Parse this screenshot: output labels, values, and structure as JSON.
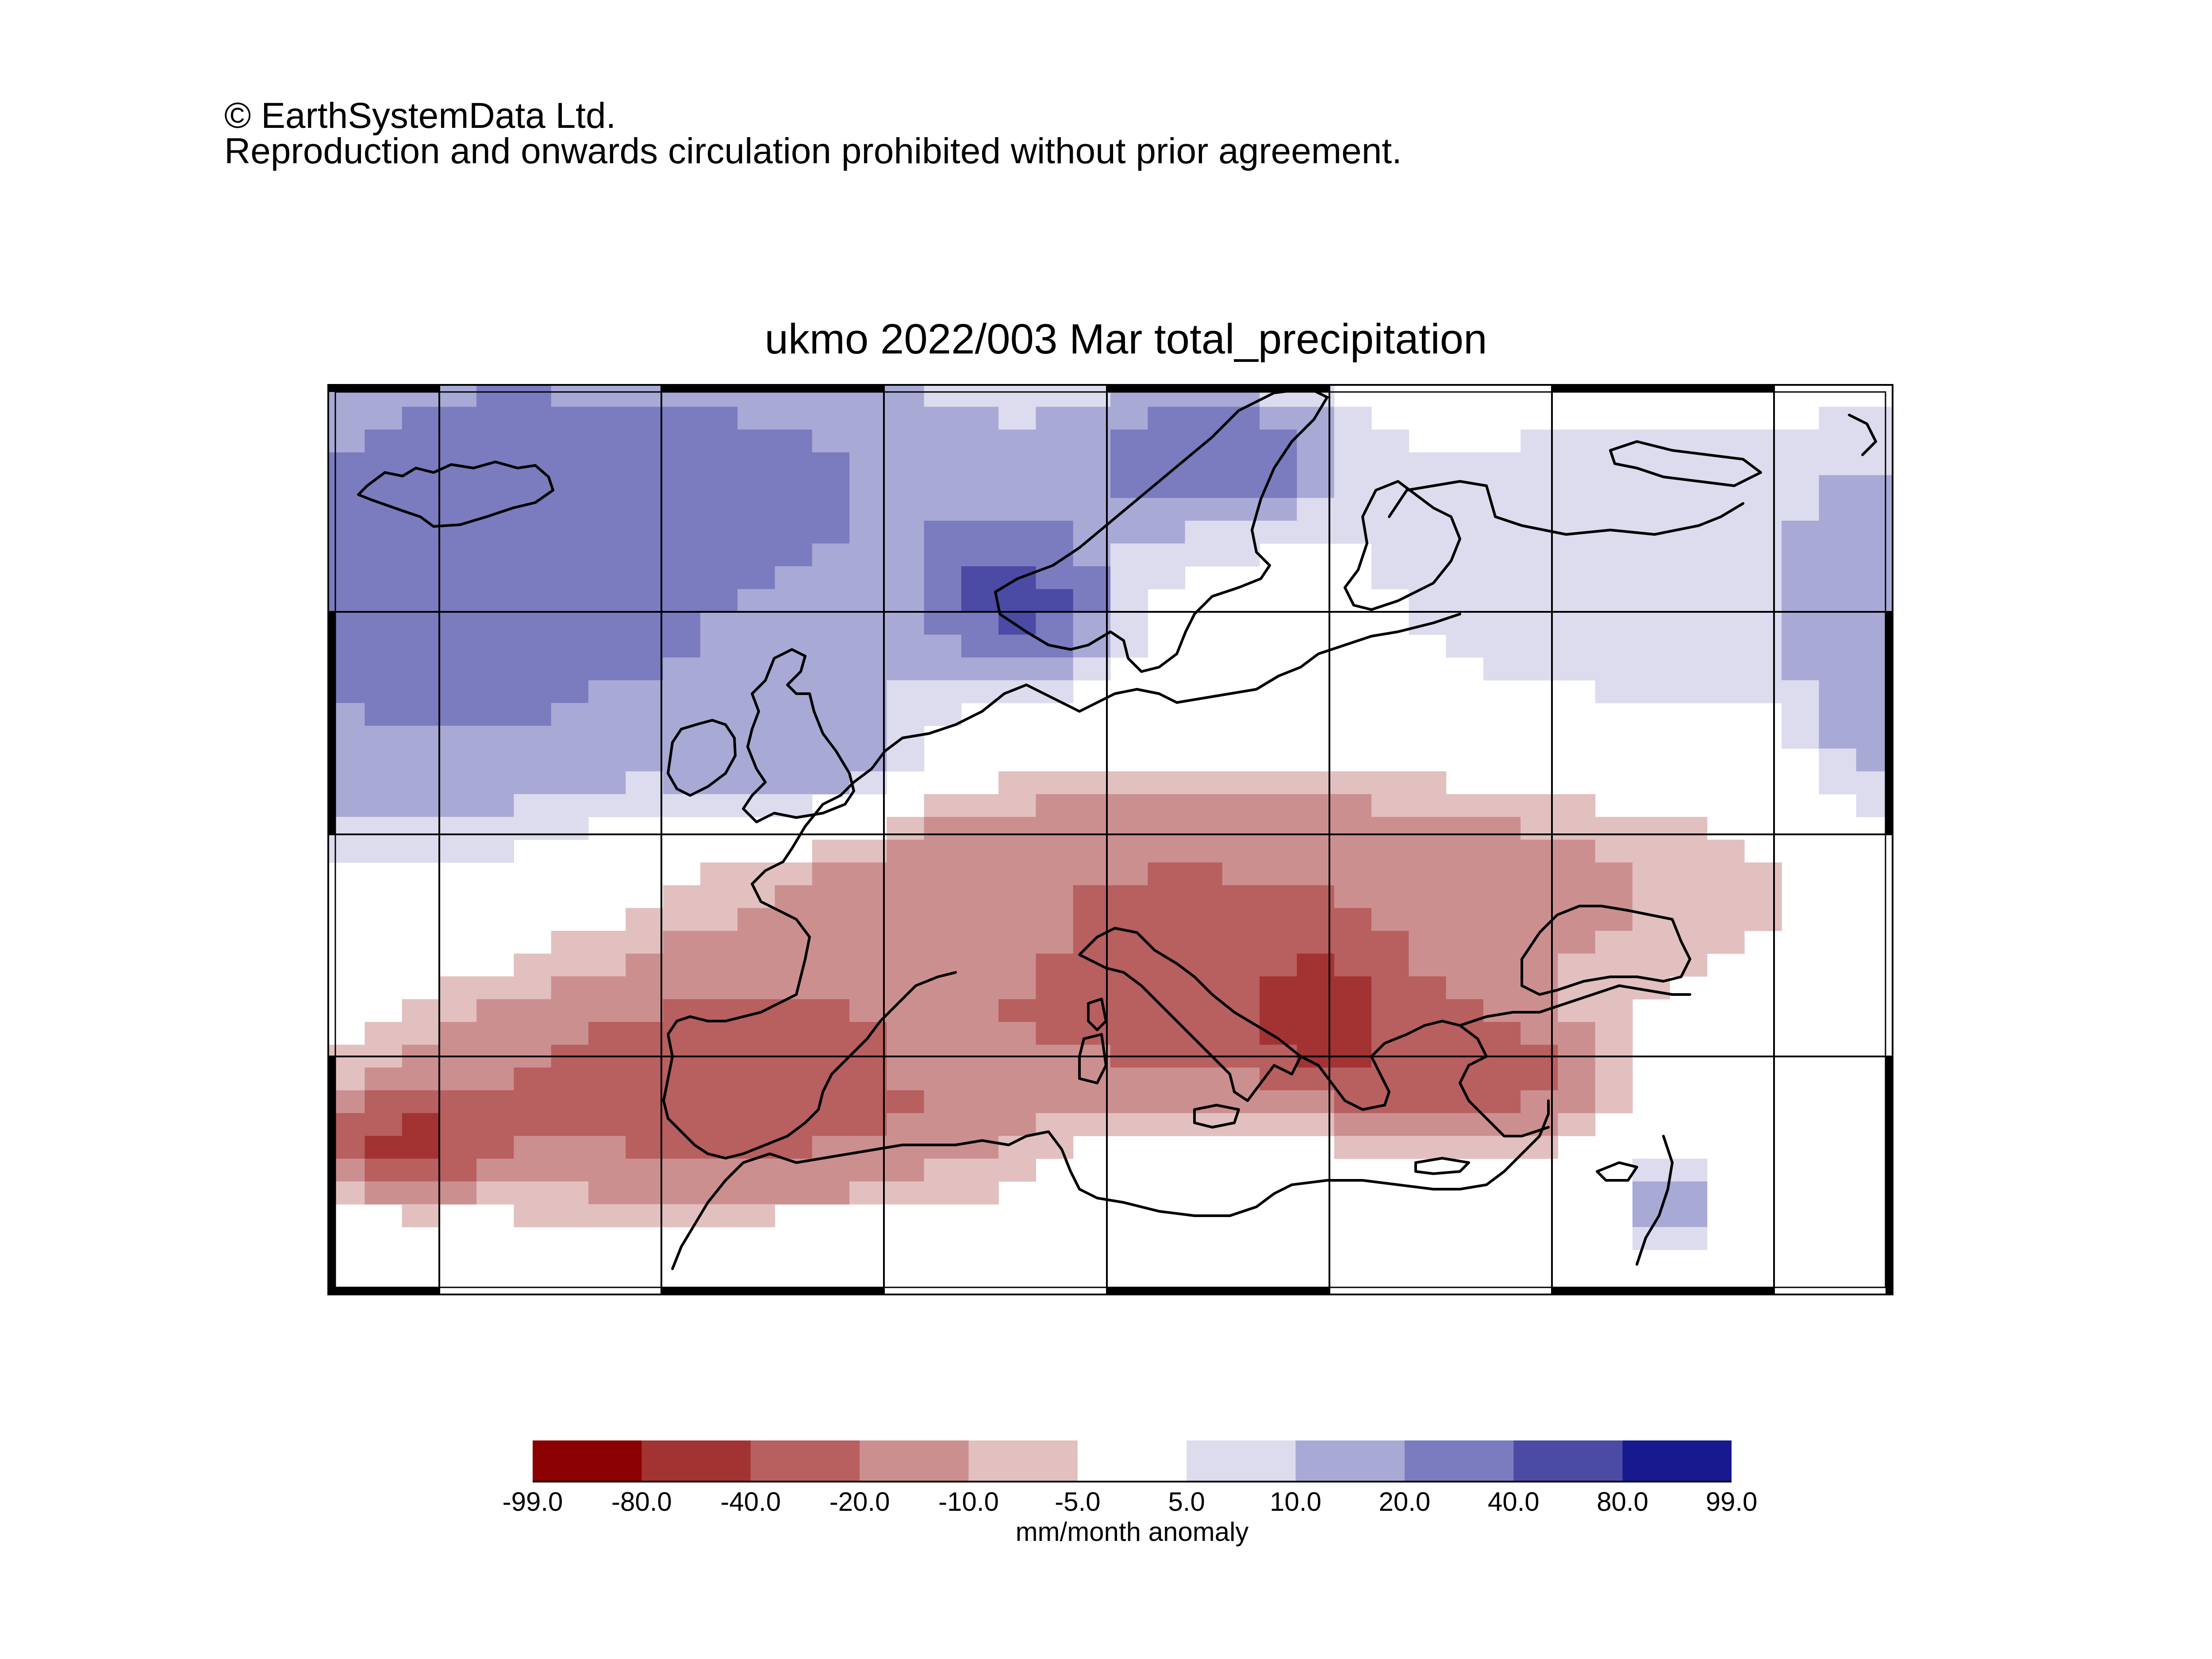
{
  "copyright": {
    "line1": "© EarthSystemData Ltd.",
    "line2": "Reproduction and onwards circulation prohibited without prior agreement."
  },
  "chart_data": {
    "type": "heatmap",
    "title": "ukmo 2022/003 Mar total_precipitation",
    "colorbar": {
      "boundaries": [
        "-99.0",
        "-80.0",
        "-40.0",
        "-20.0",
        "-10.0",
        "-5.0",
        "5.0",
        "10.0",
        "20.0",
        "40.0",
        "80.0",
        "99.0"
      ],
      "colors": [
        "#8b0000",
        "#a33333",
        "#b85f5f",
        "#cc8f8f",
        "#e2c0c0",
        "#ffffff",
        "#dcdcee",
        "#a9a9d6",
        "#7b7bbf",
        "#4b4ba6",
        "#18188f"
      ],
      "label": "mm/month anomaly"
    },
    "grid_regions_approx": [
      {
        "region": "North Atlantic / Iceland",
        "category": "20.0 to 40.0"
      },
      {
        "region": "Norwegian coast",
        "category": "40.0 to 80.0"
      },
      {
        "region": "British Isles",
        "category": "10.0 to 40.0"
      },
      {
        "region": "Scandinavia interior",
        "category": "-5.0 to 5.0"
      },
      {
        "region": "Central Europe",
        "category": "-20.0 to -10.0"
      },
      {
        "region": "Italy / Balkans",
        "category": "-40.0 to -20.0"
      },
      {
        "region": "Iberia",
        "category": "-40.0 to -20.0"
      },
      {
        "region": "Mediterranean south / North Africa",
        "category": "-5.0 to 5.0"
      },
      {
        "region": "Eastern Mediterranean / Cyprus",
        "category": "10.0 to 20.0"
      },
      {
        "region": "Russia north",
        "category": "5.0 to 10.0"
      }
    ]
  },
  "icons": {
    "map": "coastline-map-icon"
  }
}
